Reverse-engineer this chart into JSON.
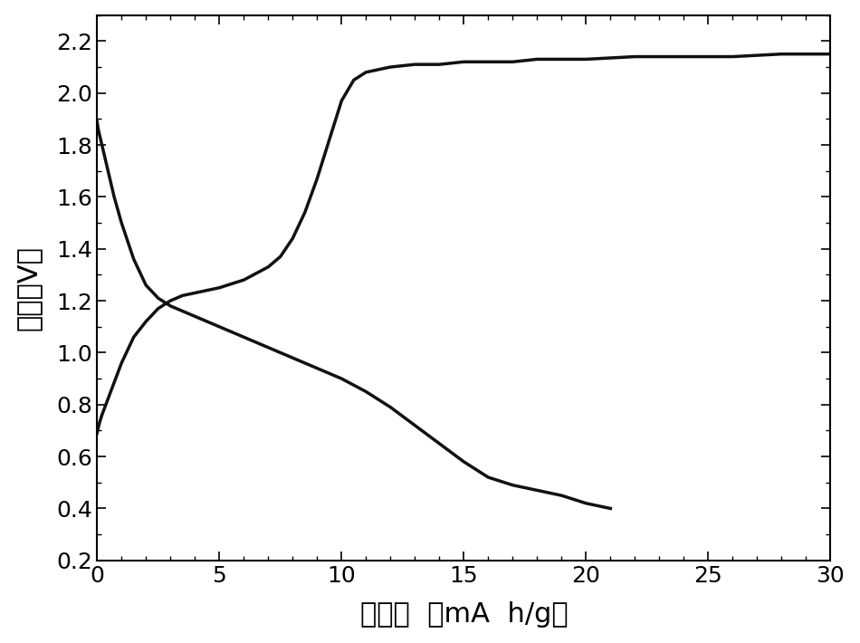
{
  "title": "",
  "xlabel": "比容量  （mA  h/g）",
  "ylabel": "电压（V）",
  "xlim": [
    0,
    30
  ],
  "ylim": [
    0.2,
    2.3
  ],
  "xticks": [
    0,
    5,
    10,
    15,
    20,
    25,
    30
  ],
  "yticks": [
    0.2,
    0.4,
    0.6,
    0.8,
    1.0,
    1.2,
    1.4,
    1.6,
    1.8,
    2.0,
    2.2
  ],
  "line_color": "#111111",
  "background_color": "#ffffff",
  "linewidth": 2.5,
  "discharge_x": [
    0,
    0.05,
    0.1,
    0.2,
    0.3,
    0.5,
    0.7,
    1.0,
    1.5,
    2.0,
    2.5,
    3.0,
    3.5,
    4.0,
    4.5,
    5.0,
    6.0,
    7.0,
    8.0,
    9.0,
    10.0,
    11.0,
    12.0,
    13.0,
    14.0,
    15.0,
    16.0,
    17.0,
    18.0,
    19.0,
    20.0,
    20.5,
    21.0
  ],
  "discharge_y": [
    1.89,
    1.86,
    1.84,
    1.8,
    1.76,
    1.68,
    1.6,
    1.5,
    1.36,
    1.26,
    1.21,
    1.18,
    1.16,
    1.14,
    1.12,
    1.1,
    1.06,
    1.02,
    0.98,
    0.94,
    0.9,
    0.85,
    0.79,
    0.72,
    0.65,
    0.58,
    0.52,
    0.49,
    0.47,
    0.45,
    0.42,
    0.41,
    0.4
  ],
  "charge_x": [
    0,
    0.05,
    0.1,
    0.2,
    0.4,
    0.6,
    0.8,
    1.0,
    1.5,
    2.0,
    2.5,
    3.0,
    3.5,
    4.0,
    5.0,
    6.0,
    7.0,
    7.5,
    8.0,
    8.5,
    9.0,
    9.5,
    10.0,
    10.5,
    11.0,
    11.5,
    12.0,
    13.0,
    14.0,
    15.0,
    16.0,
    17.0,
    18.0,
    19.0,
    20.0,
    22.0,
    24.0,
    26.0,
    28.0,
    30.0
  ],
  "charge_y": [
    0.69,
    0.71,
    0.73,
    0.76,
    0.81,
    0.86,
    0.91,
    0.96,
    1.06,
    1.12,
    1.17,
    1.2,
    1.22,
    1.23,
    1.25,
    1.28,
    1.33,
    1.37,
    1.44,
    1.54,
    1.67,
    1.82,
    1.97,
    2.05,
    2.08,
    2.09,
    2.1,
    2.11,
    2.11,
    2.12,
    2.12,
    2.12,
    2.13,
    2.13,
    2.13,
    2.14,
    2.14,
    2.14,
    2.15,
    2.15
  ]
}
